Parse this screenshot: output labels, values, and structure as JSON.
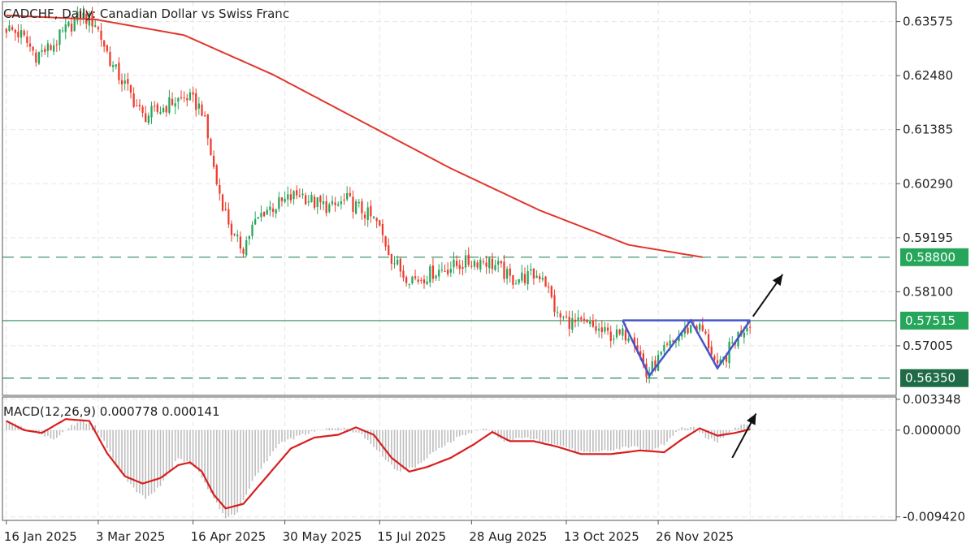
{
  "chart_data": [
    {
      "type": "candlestick",
      "title": "CADCHF, Daily:  Canadian Dollar vs Swiss Franc",
      "x_tick_labels": [
        "16 Jan 2025",
        "3 Mar 2025",
        "16 Apr 2025",
        "30 May 2025",
        "15 Jul 2025",
        "28 Aug 2025",
        "13 Oct 2025",
        "26 Nov 2025"
      ],
      "y_tick_labels": [
        "0.63575",
        "0.62480",
        "0.61385",
        "0.60290",
        "0.59195",
        "0.58100",
        "0.57005"
      ],
      "ylim": [
        0.56,
        0.6398
      ],
      "grid": true,
      "price_path": [
        [
          0,
          0.6345
        ],
        [
          5,
          0.633
        ],
        [
          10,
          0.629
        ],
        [
          15,
          0.6305
        ],
        [
          20,
          0.634
        ],
        [
          25,
          0.637
        ],
        [
          30,
          0.6355
        ],
        [
          36,
          0.6265
        ],
        [
          41,
          0.622
        ],
        [
          46,
          0.6165
        ],
        [
          51,
          0.6175
        ],
        [
          56,
          0.6195
        ],
        [
          61,
          0.6205
        ],
        [
          66,
          0.618
        ],
        [
          71,
          0.603
        ],
        [
          74,
          0.597
        ],
        [
          77,
          0.5915
        ],
        [
          80,
          0.59
        ],
        [
          83,
          0.594
        ],
        [
          87,
          0.5975
        ],
        [
          93,
          0.599
        ],
        [
          99,
          0.601
        ],
        [
          104,
          0.599
        ],
        [
          110,
          0.598
        ],
        [
          115,
          0.5995
        ],
        [
          120,
          0.5975
        ],
        [
          125,
          0.595
        ],
        [
          130,
          0.588
        ],
        [
          134,
          0.5845
        ],
        [
          139,
          0.5835
        ],
        [
          144,
          0.585
        ],
        [
          150,
          0.586
        ],
        [
          156,
          0.587
        ],
        [
          161,
          0.5875
        ],
        [
          166,
          0.586
        ],
        [
          170,
          0.5835
        ],
        [
          175,
          0.584
        ],
        [
          181,
          0.5845
        ],
        [
          186,
          0.576
        ],
        [
          192,
          0.5745
        ],
        [
          197,
          0.574
        ],
        [
          202,
          0.5725
        ],
        [
          207,
          0.572
        ],
        [
          211,
          0.573
        ],
        [
          214,
          0.568
        ],
        [
          216,
          0.564
        ],
        [
          218,
          0.5655
        ],
        [
          221,
          0.568
        ],
        [
          224,
          0.57
        ],
        [
          228,
          0.5725
        ],
        [
          232,
          0.5745
        ],
        [
          235,
          0.573
        ],
        [
          238,
          0.569
        ],
        [
          240,
          0.565
        ],
        [
          242,
          0.567
        ],
        [
          245,
          0.5705
        ],
        [
          248,
          0.573
        ],
        [
          251,
          0.5752
        ]
      ],
      "ma_path": [
        [
          0,
          0.637
        ],
        [
          30,
          0.6362
        ],
        [
          60,
          0.633
        ],
        [
          90,
          0.625
        ],
        [
          120,
          0.6155
        ],
        [
          150,
          0.606
        ],
        [
          180,
          0.5975
        ],
        [
          210,
          0.5905
        ],
        [
          235,
          0.588
        ]
      ],
      "levels": [
        {
          "value": 0.588,
          "label": "0.58800",
          "style": "dashed",
          "badge_color": "#26a65b"
        },
        {
          "value": 0.57515,
          "label": "0.57515",
          "style": "solid",
          "badge_color": "#26a65b"
        },
        {
          "value": 0.5635,
          "label": "0.56350",
          "style": "dashed",
          "badge_color": "#1e6b45"
        }
      ],
      "pattern_points": [
        [
          208,
          0.5752
        ],
        [
          217,
          0.564
        ],
        [
          231,
          0.5752
        ],
        [
          240,
          0.5655
        ],
        [
          251,
          0.5752
        ]
      ],
      "neckline": [
        [
          208,
          0.5752
        ],
        [
          251,
          0.5752
        ]
      ],
      "arrow": [
        [
          252,
          0.576
        ],
        [
          262,
          0.5845
        ]
      ],
      "colors": {
        "bull": "#26a65b",
        "bear": "#ef3b2c",
        "ma": "#e2352b",
        "pattern": "#4455cc",
        "grid": "#e6e6e6",
        "level": "#2e8b57"
      }
    },
    {
      "type": "macd",
      "title": "MACD(12,26,9) 0.000778 0.000141",
      "y_tick_labels": [
        "0.003348",
        "0.000000",
        "-0.009420"
      ],
      "ylim": [
        -0.0098,
        0.0036
      ],
      "grid": true,
      "hist_path": [
        [
          0,
          0.001
        ],
        [
          8,
          0.0
        ],
        [
          16,
          -0.001
        ],
        [
          22,
          0.0005
        ],
        [
          26,
          0.001
        ],
        [
          30,
          0.0004
        ],
        [
          36,
          -0.003
        ],
        [
          42,
          -0.006
        ],
        [
          47,
          -0.0075
        ],
        [
          52,
          -0.006
        ],
        [
          58,
          -0.003
        ],
        [
          64,
          -0.004
        ],
        [
          70,
          -0.0075
        ],
        [
          74,
          -0.0095
        ],
        [
          78,
          -0.009
        ],
        [
          84,
          -0.005
        ],
        [
          92,
          -0.0015
        ],
        [
          100,
          -0.0005
        ],
        [
          108,
          0.0002
        ],
        [
          114,
          0.0002
        ],
        [
          120,
          -0.0005
        ],
        [
          126,
          -0.0025
        ],
        [
          132,
          -0.0045
        ],
        [
          138,
          -0.004
        ],
        [
          146,
          -0.002
        ],
        [
          154,
          -0.0005
        ],
        [
          162,
          0.0003
        ],
        [
          168,
          -0.0012
        ],
        [
          176,
          -0.0008
        ],
        [
          184,
          -0.0015
        ],
        [
          192,
          -0.0022
        ],
        [
          200,
          -0.0024
        ],
        [
          206,
          -0.002
        ],
        [
          212,
          -0.0018
        ],
        [
          216,
          -0.0022
        ],
        [
          222,
          -0.0016
        ],
        [
          228,
          0.0003
        ],
        [
          232,
          0.0004
        ],
        [
          236,
          -0.0008
        ],
        [
          240,
          -0.0012
        ],
        [
          246,
          0.0002
        ],
        [
          251,
          0.0008
        ]
      ],
      "signal_path": [
        [
          0,
          0.001
        ],
        [
          6,
          0.0
        ],
        [
          12,
          -0.0003
        ],
        [
          20,
          0.0012
        ],
        [
          28,
          0.001
        ],
        [
          34,
          -0.0025
        ],
        [
          40,
          -0.005
        ],
        [
          46,
          -0.0058
        ],
        [
          52,
          -0.0052
        ],
        [
          58,
          -0.0038
        ],
        [
          62,
          -0.0035
        ],
        [
          66,
          -0.0045
        ],
        [
          70,
          -0.007
        ],
        [
          74,
          -0.0085
        ],
        [
          80,
          -0.008
        ],
        [
          88,
          -0.005
        ],
        [
          96,
          -0.002
        ],
        [
          104,
          -0.0008
        ],
        [
          112,
          -0.0005
        ],
        [
          118,
          0.0003
        ],
        [
          124,
          -0.0005
        ],
        [
          130,
          -0.003
        ],
        [
          136,
          -0.0045
        ],
        [
          142,
          -0.004
        ],
        [
          150,
          -0.003
        ],
        [
          158,
          -0.0015
        ],
        [
          164,
          -0.0002
        ],
        [
          170,
          -0.0012
        ],
        [
          178,
          -0.0012
        ],
        [
          186,
          -0.0018
        ],
        [
          194,
          -0.0026
        ],
        [
          204,
          -0.0026
        ],
        [
          214,
          -0.0022
        ],
        [
          222,
          -0.0024
        ],
        [
          228,
          -0.001
        ],
        [
          234,
          0.0002
        ],
        [
          240,
          -0.0006
        ],
        [
          246,
          -0.0003
        ],
        [
          251,
          0.0001
        ]
      ],
      "arrow": [
        [
          245,
          -0.003
        ],
        [
          253,
          0.0018
        ]
      ],
      "colors": {
        "hist": "#bdbdbd",
        "signal": "#d81e1e"
      }
    }
  ]
}
